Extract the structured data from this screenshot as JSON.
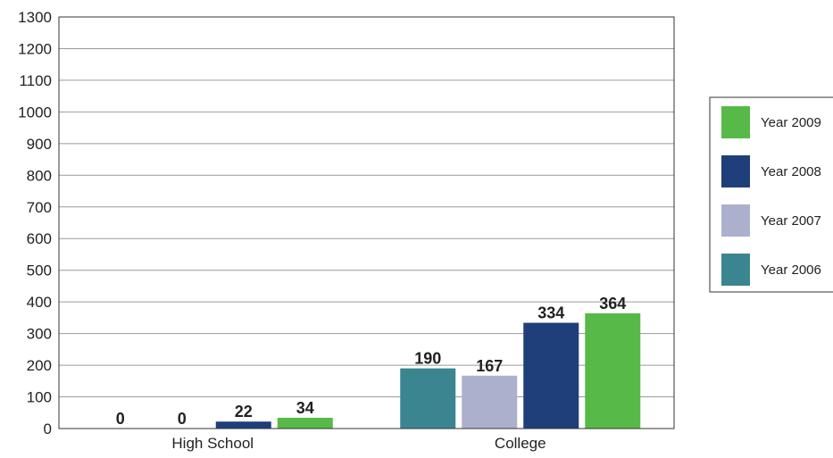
{
  "chart_data": {
    "type": "bar",
    "title": "",
    "xlabel": "",
    "ylabel": "",
    "ylim": [
      0,
      1300
    ],
    "yticks": [
      0,
      100,
      200,
      300,
      400,
      500,
      600,
      700,
      800,
      900,
      1000,
      1100,
      1200,
      1300
    ],
    "grid": "horizontal",
    "legend_position": "right",
    "categories": [
      "High School",
      "College"
    ],
    "series": [
      {
        "name": "Year 2006",
        "color": "#3b8590",
        "values": [
          0,
          190
        ]
      },
      {
        "name": "Year 2007",
        "color": "#adb0cc",
        "values": [
          0,
          167
        ]
      },
      {
        "name": "Year 2008",
        "color": "#1f3f7a",
        "values": [
          22,
          334
        ]
      },
      {
        "name": "Year 2009",
        "color": "#57b947",
        "values": [
          34,
          364
        ]
      }
    ],
    "legend_order": [
      "Year 2009",
      "Year 2008",
      "Year 2007",
      "Year 2006"
    ]
  }
}
